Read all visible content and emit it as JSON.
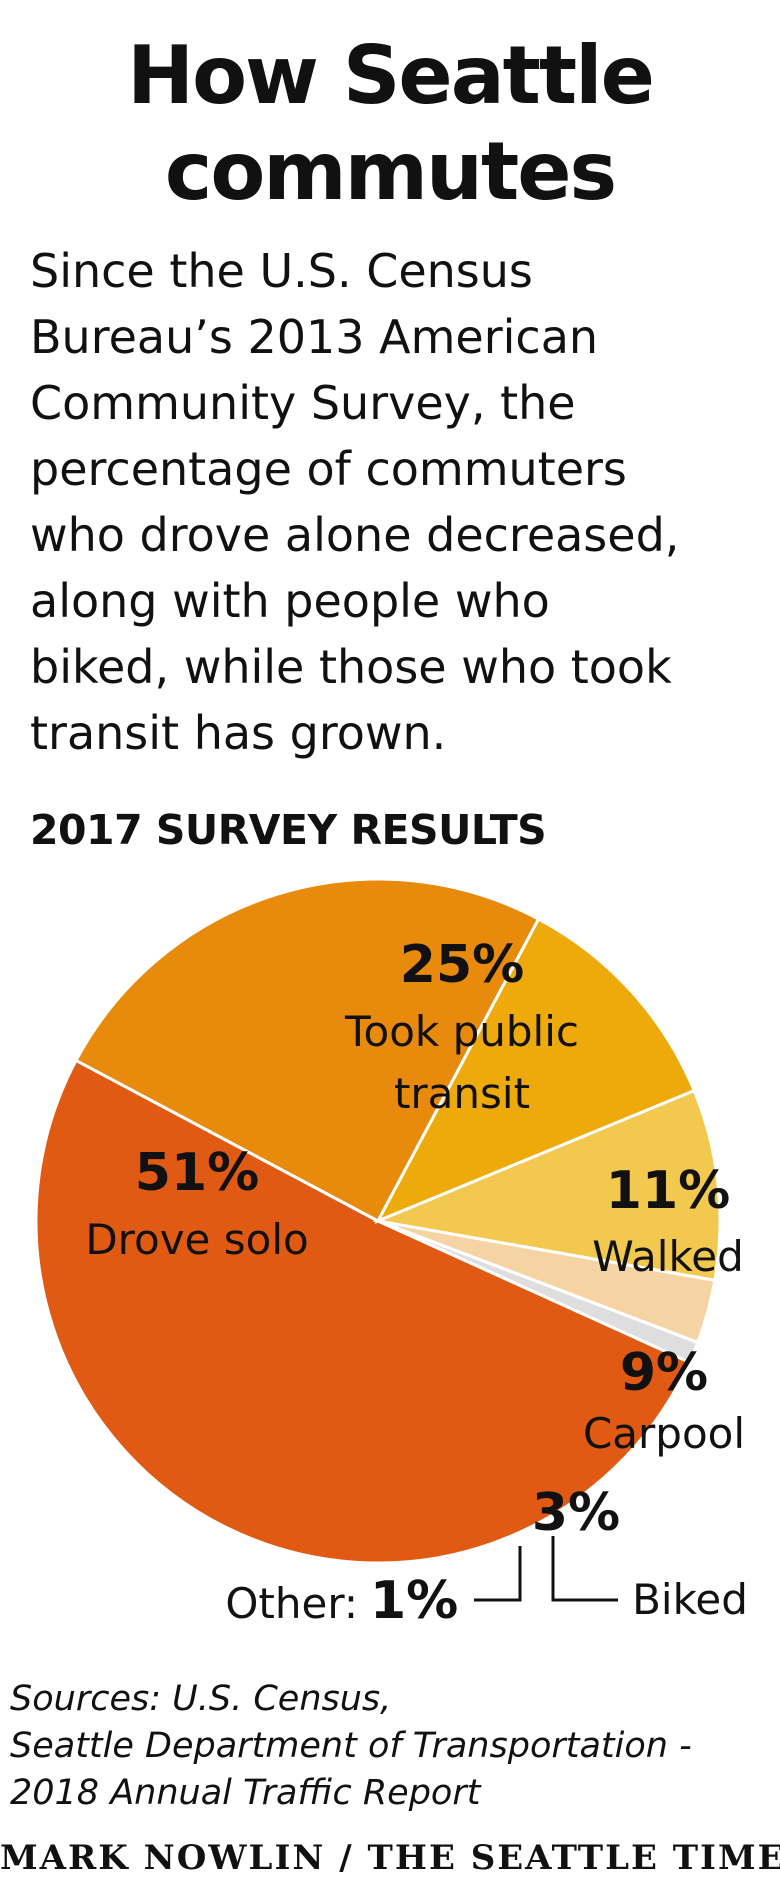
{
  "title": {
    "line1": "How Seattle",
    "line2": "commutes"
  },
  "intro": {
    "lines": [
      "Since the U.S. Census",
      "Bureau’s 2013 American",
      "Community Survey, the",
      "percentage of commuters",
      "who drove alone decreased,",
      "along with people who",
      "biked, while those who took",
      "transit has grown."
    ]
  },
  "subhead": "2017 SURVEY RESULTS",
  "chart_data": {
    "type": "pie",
    "title": "2017 SURVEY RESULTS",
    "slices": [
      {
        "label": "Drove solo",
        "value": 51,
        "display": "51%",
        "color": "#e05a14"
      },
      {
        "label": "Took public transit",
        "value": 25,
        "display": "25%",
        "color": "#e88a0c"
      },
      {
        "label": "Walked",
        "value": 11,
        "display": "11%",
        "color": "#eeaa0a"
      },
      {
        "label": "Carpool",
        "value": 9,
        "display": "9%",
        "color": "#f3c84e"
      },
      {
        "label": "Biked",
        "value": 3,
        "display": "3%",
        "color": "#f6d3a2"
      },
      {
        "label": "Other:",
        "value": 1,
        "display": "1%",
        "color": "#dedede"
      }
    ]
  },
  "labels": {
    "transit_line1": "Took public",
    "transit_line2": "transit"
  },
  "sources": {
    "line1": "Sources: U.S. Census,",
    "line2": "Seattle Department of Transportation -",
    "line3": "2018 Annual Traffic Report"
  },
  "credit": "MARK NOWLIN / THE SEATTLE TIMES"
}
